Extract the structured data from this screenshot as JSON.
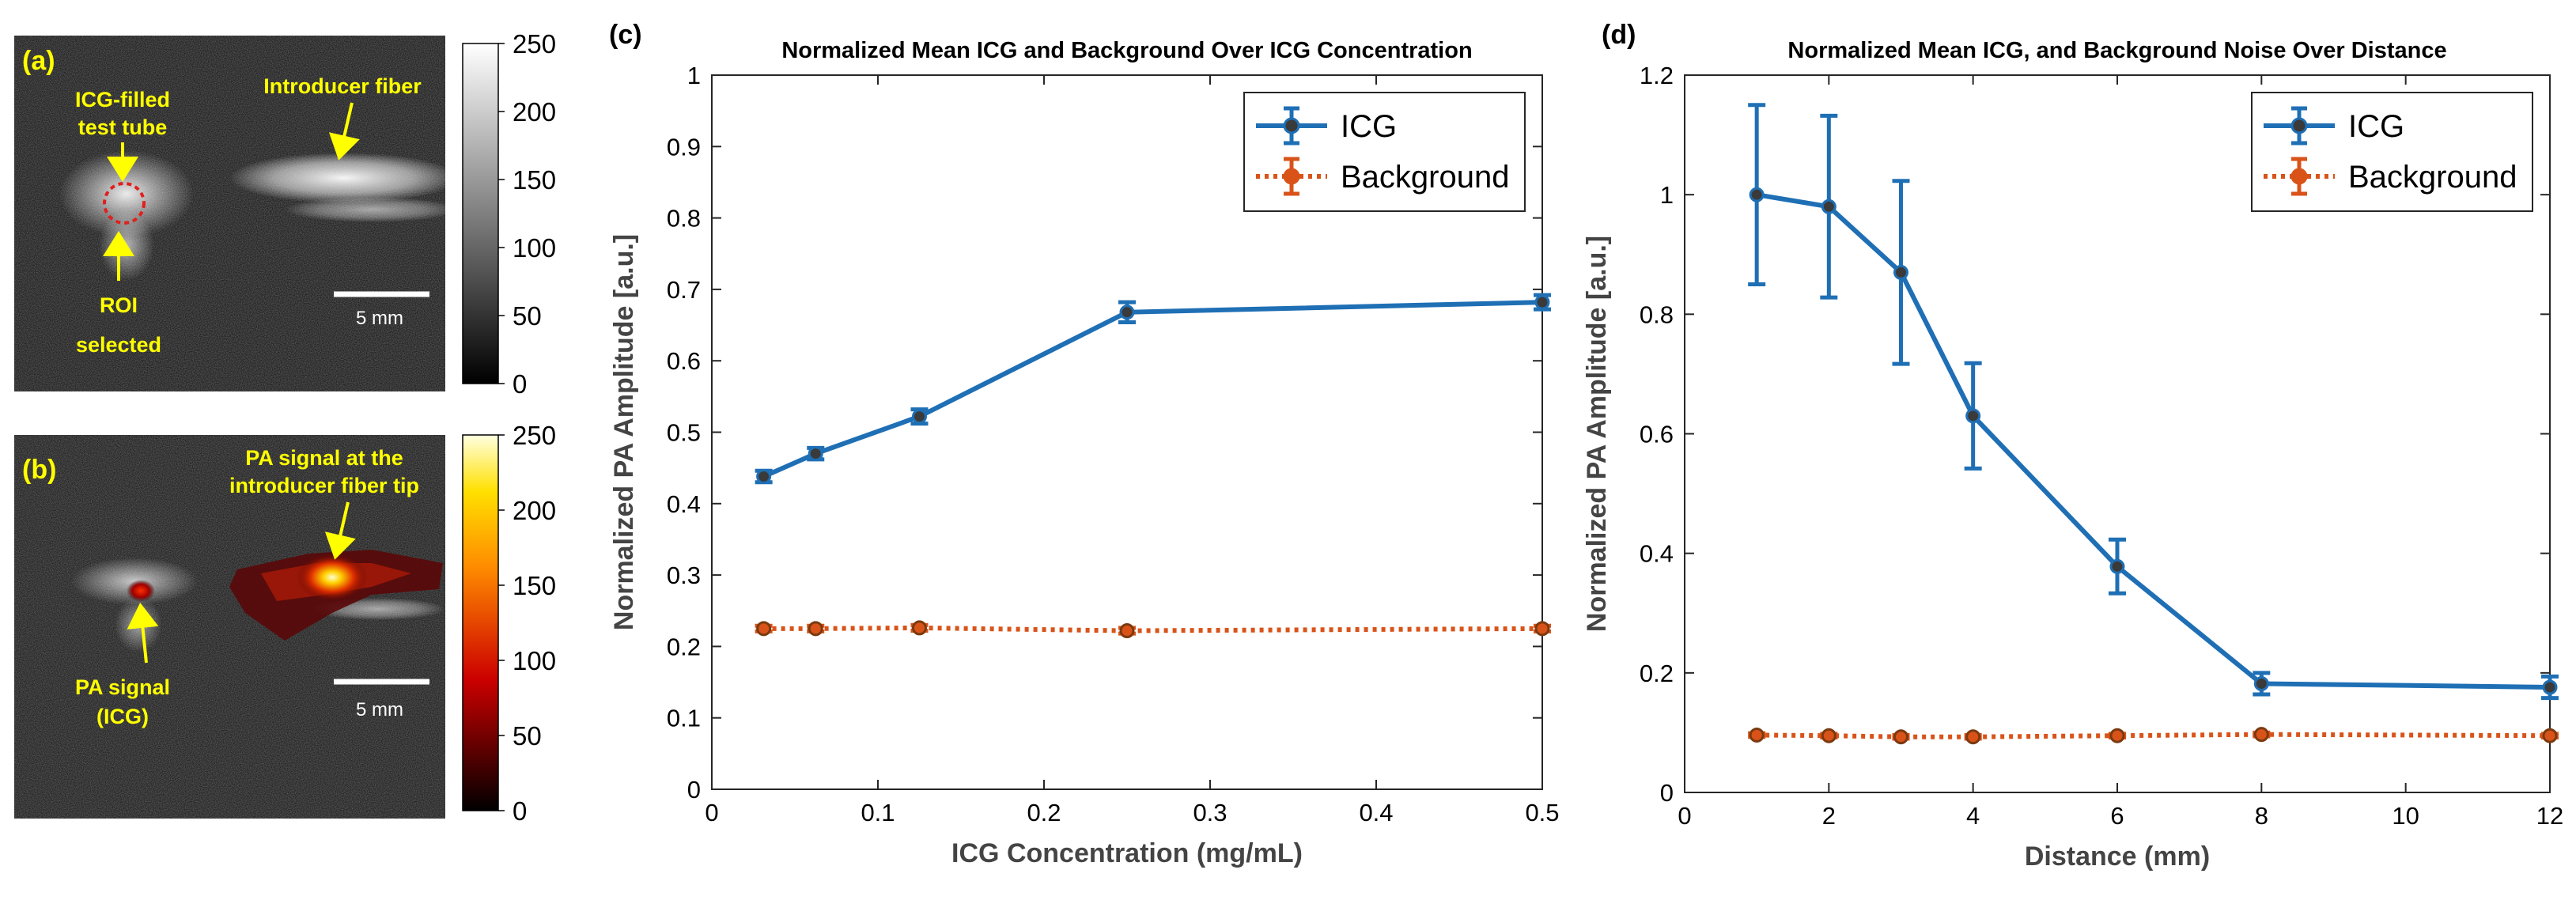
{
  "panel_a": {
    "label": "(a)",
    "annotations": {
      "tube_line1": "ICG-filled",
      "tube_line2": "test tube",
      "fiber": "Introducer fiber",
      "roi_line1": "ROI",
      "roi_line2": "selected",
      "scale": "5 mm"
    },
    "colorbar_ticks": [
      "250",
      "200",
      "150",
      "100",
      "50",
      "0"
    ]
  },
  "panel_b": {
    "label": "(b)",
    "annotations": {
      "tip_line1": "PA signal at the",
      "tip_line2": "introducer fiber tip",
      "icg_line1": "PA signal",
      "icg_line2": "(ICG)",
      "scale": "5 mm"
    },
    "colorbar_ticks": [
      "250",
      "200",
      "150",
      "100",
      "50",
      "0"
    ]
  },
  "chart_data": [
    {
      "panel": "(c)",
      "type": "line",
      "title": "Normalized Mean ICG and Background Over ICG Concentration",
      "xlabel": "ICG Concentration (mg/mL)",
      "ylabel": "Normalized PA Amplitude [a.u.]",
      "xlim": [
        0,
        0.5
      ],
      "ylim": [
        0,
        1
      ],
      "xticks": [
        0,
        0.1,
        0.2,
        0.3,
        0.4,
        0.5
      ],
      "xtick_labels": [
        "0",
        "0.1",
        "0.2",
        "0.3",
        "0.4",
        "0.5"
      ],
      "yticks": [
        0,
        0.1,
        0.2,
        0.3,
        0.4,
        0.5,
        0.6,
        0.7,
        0.8,
        0.9,
        1
      ],
      "ytick_labels": [
        "0",
        "0.1",
        "0.2",
        "0.3",
        "0.4",
        "0.5",
        "0.6",
        "0.7",
        "0.8",
        "0.9",
        "1"
      ],
      "legend_position": "top-right",
      "series": [
        {
          "name": "ICG",
          "color": "#1f6fb5",
          "style": "solid",
          "x": [
            0.03125,
            0.0625,
            0.125,
            0.25,
            0.5
          ],
          "values": [
            0.438,
            0.47,
            0.522,
            0.668,
            0.682
          ],
          "err": [
            0.008,
            0.008,
            0.01,
            0.014,
            0.01
          ]
        },
        {
          "name": "Background",
          "color": "#d95319",
          "style": "dotted",
          "x": [
            0.03125,
            0.0625,
            0.125,
            0.25,
            0.5
          ],
          "values": [
            0.225,
            0.225,
            0.226,
            0.222,
            0.225
          ],
          "err": [
            0.004,
            0.004,
            0.004,
            0.004,
            0.004
          ]
        }
      ]
    },
    {
      "panel": "(d)",
      "type": "line",
      "title": "Normalized Mean ICG, and Background Noise Over Distance",
      "xlabel": "Distance (mm)",
      "ylabel": "Normalized PA Amplitude [a.u.]",
      "xlim": [
        0,
        12
      ],
      "ylim": [
        0,
        1.2
      ],
      "xticks": [
        0,
        2,
        4,
        6,
        8,
        10,
        12
      ],
      "xtick_labels": [
        "0",
        "2",
        "4",
        "6",
        "8",
        "10",
        "12"
      ],
      "yticks": [
        0,
        0.2,
        0.4,
        0.6,
        0.8,
        1,
        1.2
      ],
      "ytick_labels": [
        "0",
        "0.2",
        "0.4",
        "0.6",
        "0.8",
        "1",
        "1.2"
      ],
      "legend_position": "top-right",
      "series": [
        {
          "name": "ICG",
          "color": "#1f6fb5",
          "style": "solid",
          "x": [
            1,
            2,
            3,
            4,
            6,
            8,
            12
          ],
          "values": [
            1.0,
            0.98,
            0.87,
            0.63,
            0.378,
            0.182,
            0.176
          ],
          "err": [
            0.15,
            0.152,
            0.153,
            0.088,
            0.045,
            0.018,
            0.018
          ]
        },
        {
          "name": "Background",
          "color": "#d95319",
          "style": "dotted",
          "x": [
            1,
            2,
            3,
            4,
            6,
            8,
            12
          ],
          "values": [
            0.096,
            0.095,
            0.093,
            0.093,
            0.095,
            0.097,
            0.095
          ],
          "err": [
            0.003,
            0.003,
            0.003,
            0.003,
            0.003,
            0.003,
            0.003
          ]
        }
      ]
    }
  ]
}
